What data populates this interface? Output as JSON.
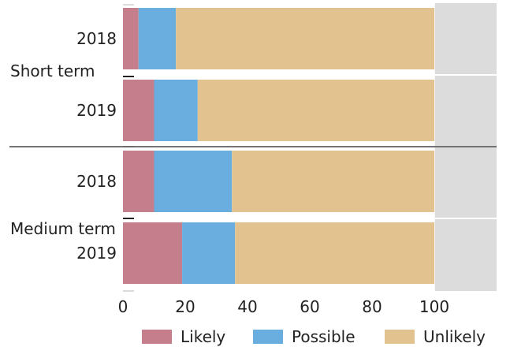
{
  "chart_data": {
    "type": "bar",
    "orientation": "horizontal",
    "stacked": true,
    "groups": [
      {
        "name": "Short term",
        "categories": [
          "2018",
          "2019"
        ]
      },
      {
        "name": "Medium term",
        "categories": [
          "2018",
          "2019"
        ]
      }
    ],
    "series": [
      {
        "name": "Likely",
        "color": "#c47e8c",
        "values": [
          5,
          10,
          10,
          19
        ]
      },
      {
        "name": "Possible",
        "color": "#6aaee0",
        "values": [
          12,
          14,
          25,
          17
        ]
      },
      {
        "name": "Unlikely",
        "color": "#e2c390",
        "values": [
          83,
          76,
          65,
          64
        ]
      }
    ],
    "xlim": [
      0,
      120
    ],
    "xticks": [
      0,
      20,
      40,
      60,
      80,
      100
    ],
    "background_band": {
      "from": 100,
      "to": 120,
      "color": "#dcdcdc"
    },
    "grid": true,
    "legend_position": "bottom",
    "title": "",
    "xlabel": "",
    "ylabel": ""
  }
}
